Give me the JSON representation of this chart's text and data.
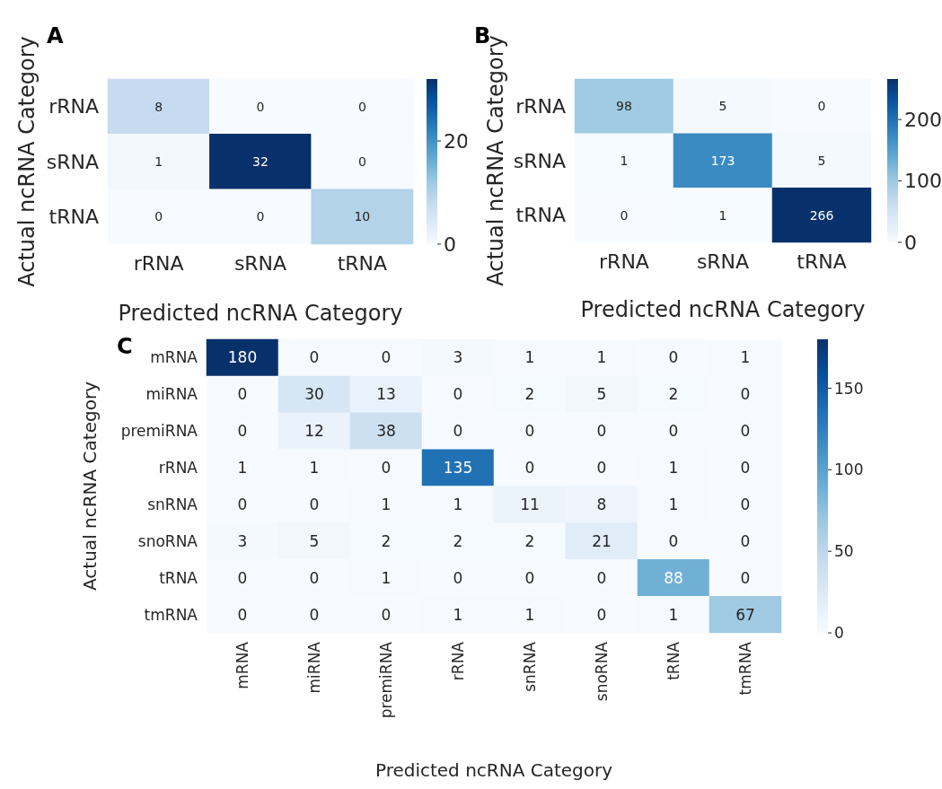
{
  "chart_data": [
    {
      "type": "heatmap",
      "title": "A",
      "xlabel": "Predicted ncRNA Category",
      "ylabel": "Actual ncRNA Category",
      "categories": [
        "rRNA",
        "sRNA",
        "tRNA"
      ],
      "y_categories": [
        "rRNA",
        "sRNA",
        "tRNA"
      ],
      "cells": [
        [
          8,
          0,
          0
        ],
        [
          1,
          32,
          0
        ],
        [
          0,
          0,
          10
        ]
      ],
      "clim": [
        0,
        32
      ],
      "cticks": [
        0,
        20
      ],
      "data_labels": true
    },
    {
      "type": "heatmap",
      "title": "B",
      "xlabel": "Predicted ncRNA Category",
      "ylabel": "Actual ncRNA Category",
      "categories": [
        "rRNA",
        "sRNA",
        "tRNA"
      ],
      "y_categories": [
        "rRNA",
        "sRNA",
        "tRNA"
      ],
      "cells": [
        [
          98,
          5,
          0
        ],
        [
          1,
          173,
          5
        ],
        [
          0,
          1,
          266
        ]
      ],
      "clim": [
        0,
        266
      ],
      "cticks": [
        0,
        100,
        200
      ],
      "data_labels": true
    },
    {
      "type": "heatmap",
      "title": "C",
      "xlabel": "Predicted ncRNA Category",
      "ylabel": "Actual ncRNA Category",
      "categories": [
        "mRNA",
        "miRNA",
        "premiRNA",
        "rRNA",
        "snRNA",
        "snoRNA",
        "tRNA",
        "tmRNA"
      ],
      "y_categories": [
        "mRNA",
        "miRNA",
        "premiRNA",
        "rRNA",
        "snRNA",
        "snoRNA",
        "tRNA",
        "tmRNA"
      ],
      "cells": [
        [
          180,
          0,
          0,
          3,
          1,
          1,
          0,
          1
        ],
        [
          0,
          30,
          13,
          0,
          2,
          5,
          2,
          0
        ],
        [
          0,
          12,
          38,
          0,
          0,
          0,
          0,
          0
        ],
        [
          1,
          1,
          0,
          135,
          0,
          0,
          1,
          0
        ],
        [
          0,
          0,
          1,
          1,
          11,
          8,
          1,
          0
        ],
        [
          3,
          5,
          2,
          2,
          2,
          21,
          0,
          0
        ],
        [
          0,
          0,
          1,
          0,
          0,
          0,
          88,
          0
        ],
        [
          0,
          0,
          0,
          1,
          1,
          0,
          1,
          67
        ]
      ],
      "clim": [
        0,
        180
      ],
      "cticks": [
        0,
        50,
        100,
        150
      ],
      "data_labels": true
    }
  ]
}
